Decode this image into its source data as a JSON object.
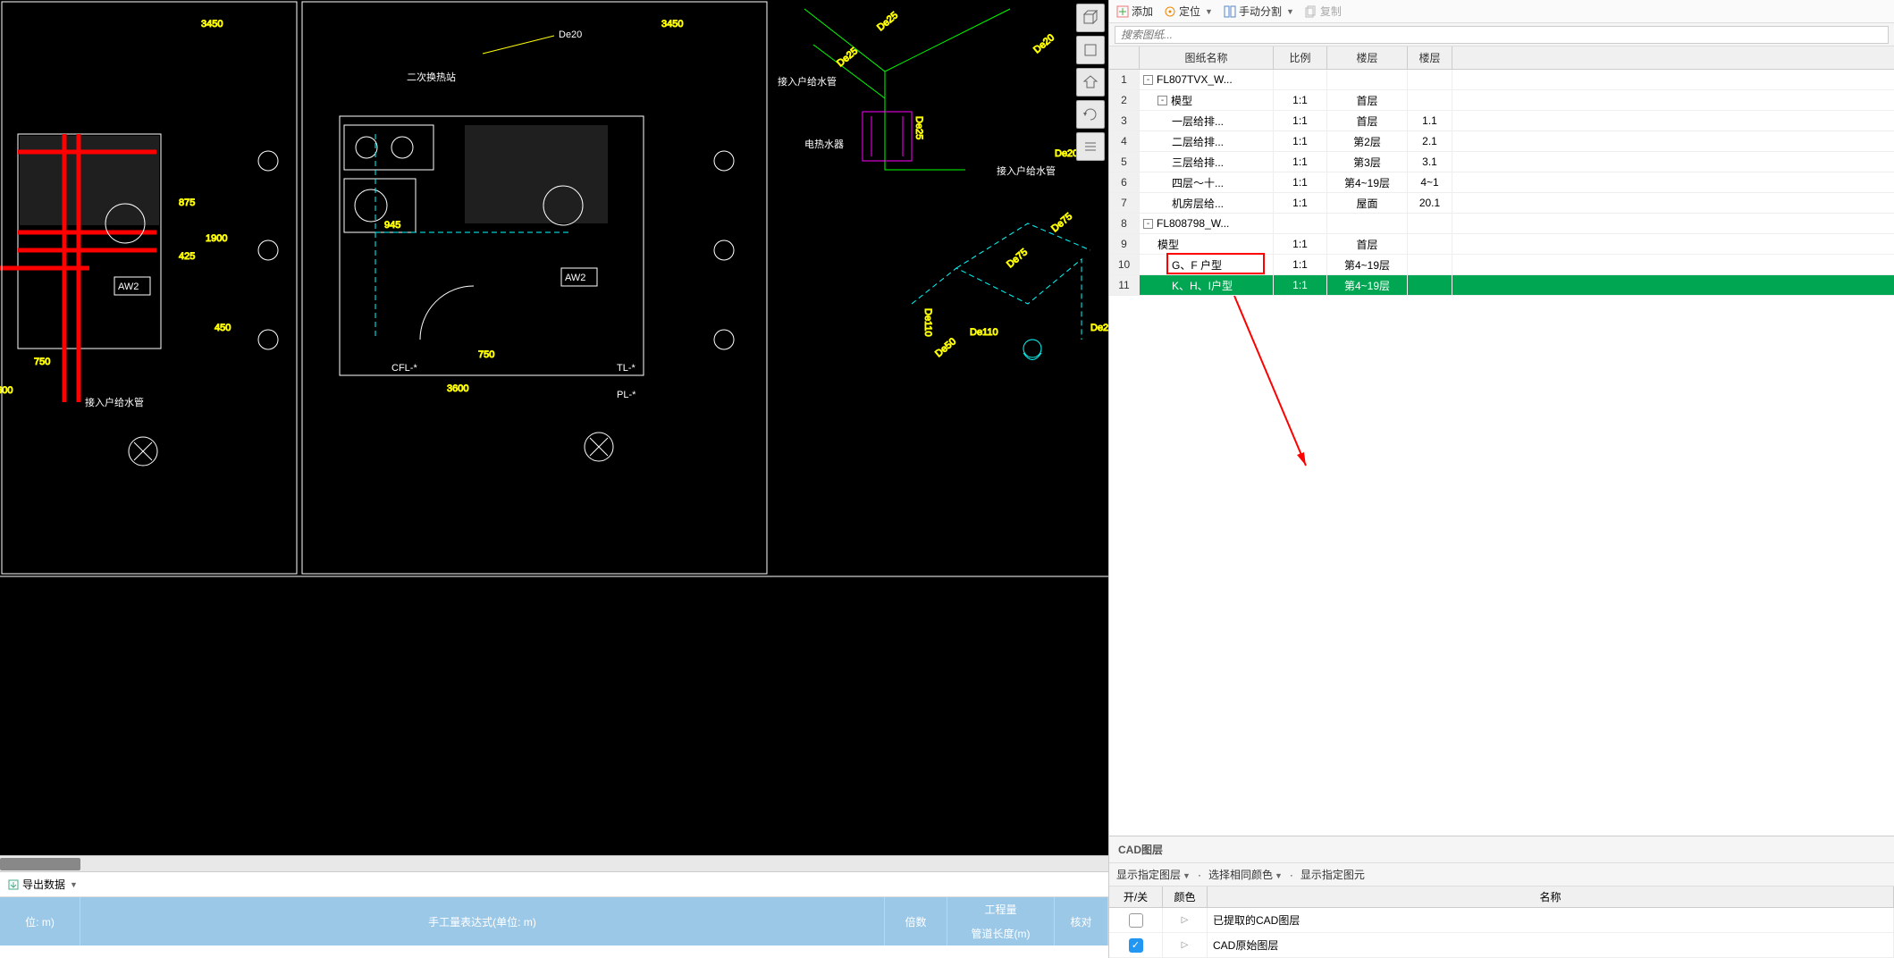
{
  "toolbar": {
    "add": "添加",
    "locate": "定位",
    "manual_split": "手动分割",
    "copy": "复制"
  },
  "search": {
    "placeholder": "搜索图纸..."
  },
  "tree": {
    "headers": {
      "name": "图纸名称",
      "ratio": "比例",
      "floor": "楼层",
      "floor2": "楼层"
    },
    "rows": [
      {
        "idx": "1",
        "indent": 0,
        "expander": "-",
        "name": "FL807TVX_W...",
        "ratio": "",
        "floor": "",
        "floor2": ""
      },
      {
        "idx": "2",
        "indent": 1,
        "expander": "-",
        "name": "模型",
        "ratio": "1:1",
        "floor": "首层",
        "floor2": ""
      },
      {
        "idx": "3",
        "indent": 2,
        "expander": "",
        "name": "一层给排...",
        "ratio": "1:1",
        "floor": "首层",
        "floor2": "1.1"
      },
      {
        "idx": "4",
        "indent": 2,
        "expander": "",
        "name": "二层给排...",
        "ratio": "1:1",
        "floor": "第2层",
        "floor2": "2.1"
      },
      {
        "idx": "5",
        "indent": 2,
        "expander": "",
        "name": "三层给排...",
        "ratio": "1:1",
        "floor": "第3层",
        "floor2": "3.1"
      },
      {
        "idx": "6",
        "indent": 2,
        "expander": "",
        "name": "四层～十...",
        "ratio": "1:1",
        "floor": "第4~19层",
        "floor2": "4~1"
      },
      {
        "idx": "7",
        "indent": 2,
        "expander": "",
        "name": "机房层给...",
        "ratio": "1:1",
        "floor": "屋面",
        "floor2": "20.1"
      },
      {
        "idx": "8",
        "indent": 0,
        "expander": "-",
        "name": "FL808798_W...",
        "ratio": "",
        "floor": "",
        "floor2": ""
      },
      {
        "idx": "9",
        "indent": 1,
        "expander": "",
        "name": "模型",
        "ratio": "1:1",
        "floor": "首层",
        "floor2": ""
      },
      {
        "idx": "10",
        "indent": 2,
        "expander": "",
        "name": "G、F 户型",
        "ratio": "1:1",
        "floor": "第4~19层",
        "floor2": "",
        "highlight": true
      },
      {
        "idx": "11",
        "indent": 2,
        "expander": "",
        "name": "K、H、I户型",
        "ratio": "1:1",
        "floor": "第4~19层",
        "floor2": "",
        "selected": true
      }
    ]
  },
  "layers": {
    "title": "CAD图层",
    "toolbar": {
      "show_layer": "显示指定图层",
      "select_color": "选择相同颜色",
      "show_element": "显示指定图元"
    },
    "headers": {
      "switch": "开/关",
      "color": "颜色",
      "name": "名称"
    },
    "rows": [
      {
        "checked": false,
        "name": "已提取的CAD图层"
      },
      {
        "checked": true,
        "name": "CAD原始图层"
      }
    ]
  },
  "bottom": {
    "export": "导出数据",
    "headers": {
      "unit": "位: m)",
      "manual": "手工量表达式(单位: m)",
      "times": "倍数",
      "eng": "工程量",
      "pipe": "管道长度(m)",
      "check": "核对"
    }
  },
  "cad": {
    "labels": {
      "de20": "De20",
      "de25": "De25",
      "de50": "De50",
      "de75": "De75",
      "de110": "De110",
      "cfl": "CFL-*",
      "tl": "TL-*",
      "pl": "PL-*",
      "aw2": "AW2",
      "dim750": "750",
      "dim3600": "3600",
      "dim875": "875",
      "dim425": "425",
      "dim1900": "1900",
      "dim450": "450",
      "dim3450": "3450",
      "dim945": "945",
      "pipe_in": "接入户给水管",
      "cold_meter": "电热水器",
      "secondary": "二次换热站"
    }
  }
}
